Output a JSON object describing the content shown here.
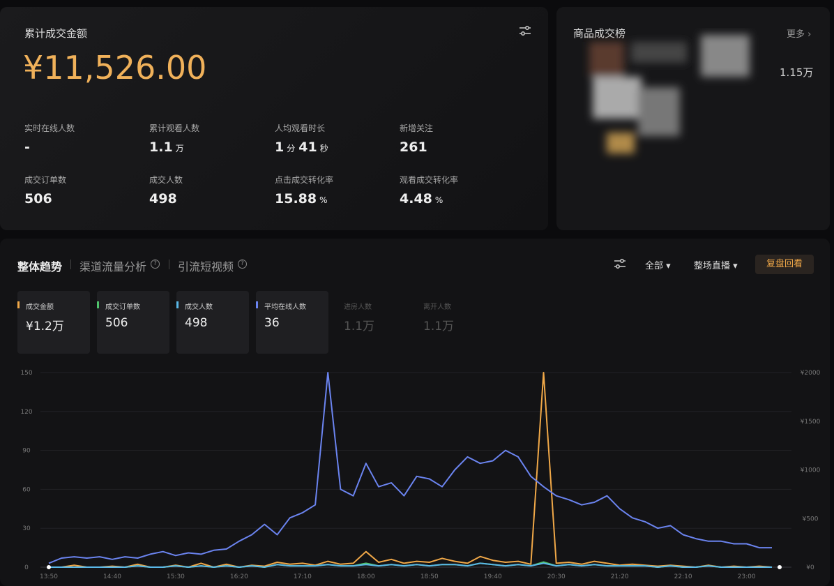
{
  "overview": {
    "title": "累计成交金额",
    "amount": "¥11,526.00",
    "stats": [
      {
        "label": "实时在线人数",
        "parts": [
          {
            "num": "-"
          }
        ]
      },
      {
        "label": "累计观看人数",
        "parts": [
          {
            "num": "1.1",
            "unit": "万"
          }
        ]
      },
      {
        "label": "人均观看时长",
        "parts": [
          {
            "num": "1",
            "unit": "分"
          },
          {
            "num": "41",
            "unit": "秒"
          }
        ]
      },
      {
        "label": "新增关注",
        "parts": [
          {
            "num": "261"
          }
        ]
      },
      {
        "label": "成交订单数",
        "parts": [
          {
            "num": "506"
          }
        ]
      },
      {
        "label": "成交人数",
        "parts": [
          {
            "num": "498"
          }
        ]
      },
      {
        "label": "点击成交转化率",
        "parts": [
          {
            "num": "15.88",
            "unit": "%"
          }
        ]
      },
      {
        "label": "观看成交转化率",
        "parts": [
          {
            "num": "4.48",
            "unit": "%"
          }
        ]
      }
    ]
  },
  "ranking": {
    "title": "商品成交榜",
    "more": "更多",
    "amount": "1.15万"
  },
  "tabs": [
    "整体趋势",
    "渠道流量分析",
    "引流短视频"
  ],
  "controls": {
    "scope": "全部",
    "range": "整场直播",
    "action": "复盘回看"
  },
  "extra_metrics": [
    {
      "name": "进房人数",
      "summary": "1.1万"
    },
    {
      "name": "离开人数",
      "summary": "1.1万"
    }
  ],
  "chart_data": {
    "type": "line",
    "categories": [
      "13:50",
      null,
      null,
      null,
      null,
      "14:40",
      null,
      null,
      null,
      null,
      "15:30",
      null,
      null,
      null,
      null,
      "16:20",
      null,
      null,
      null,
      null,
      "17:10",
      null,
      null,
      null,
      null,
      "18:00",
      null,
      null,
      null,
      null,
      "18:50",
      null,
      null,
      null,
      null,
      "19:40",
      null,
      null,
      null,
      null,
      "20:30",
      null,
      null,
      null,
      null,
      "21:20",
      null,
      null,
      null,
      null,
      "22:10",
      null,
      null,
      null,
      null,
      "23:00",
      null,
      null
    ],
    "ylim": [
      0,
      150
    ],
    "yticks": [
      0,
      30,
      60,
      90,
      120,
      150
    ],
    "y2lim": [
      0,
      2000
    ],
    "y2ticks": [
      {
        "value": 0,
        "label": "¥0"
      },
      {
        "value": 500,
        "label": "¥500"
      },
      {
        "value": 1000,
        "label": "¥1000"
      },
      {
        "value": 1500,
        "label": "¥1500"
      },
      {
        "value": 2000,
        "label": "¥2000"
      }
    ],
    "grid": true,
    "series": [
      {
        "name": "成交金额",
        "summary": "¥1.2万",
        "color": "#f0a848",
        "axis": "y2",
        "values": [
          0,
          0,
          20,
          0,
          0,
          10,
          0,
          30,
          0,
          0,
          20,
          0,
          40,
          0,
          30,
          0,
          20,
          10,
          50,
          30,
          40,
          20,
          60,
          30,
          40,
          160,
          50,
          80,
          40,
          60,
          50,
          90,
          60,
          40,
          110,
          70,
          50,
          60,
          30,
          2000,
          40,
          50,
          30,
          60,
          40,
          20,
          30,
          20,
          10,
          20,
          10,
          0,
          20,
          0,
          10,
          0,
          10,
          0
        ]
      },
      {
        "name": "成交订单数",
        "summary": "506",
        "color": "#4fc36b",
        "values": [
          0,
          0,
          0,
          0,
          0,
          0,
          0,
          1,
          0,
          0,
          1,
          0,
          1,
          0,
          1,
          0,
          1,
          0,
          2,
          1,
          1,
          1,
          2,
          1,
          1,
          3,
          1,
          2,
          1,
          2,
          1,
          2,
          2,
          1,
          3,
          2,
          1,
          2,
          1,
          4,
          1,
          2,
          1,
          2,
          1,
          1,
          1,
          1,
          0,
          1,
          0,
          0,
          1,
          0,
          0,
          0,
          0,
          0
        ]
      },
      {
        "name": "成交人数",
        "summary": "498",
        "color": "#5ab8e8",
        "values": [
          0,
          0,
          0,
          0,
          0,
          0,
          0,
          1,
          0,
          0,
          1,
          0,
          1,
          0,
          1,
          0,
          1,
          0,
          2,
          1,
          1,
          1,
          2,
          1,
          1,
          2,
          1,
          2,
          1,
          2,
          1,
          2,
          2,
          1,
          3,
          2,
          1,
          2,
          1,
          3,
          1,
          2,
          1,
          2,
          1,
          1,
          1,
          1,
          0,
          1,
          0,
          0,
          1,
          0,
          0,
          0,
          0,
          0
        ]
      },
      {
        "name": "平均在线人数",
        "summary": "36",
        "color": "#6b84f0",
        "values": [
          3,
          7,
          8,
          7,
          8,
          6,
          8,
          7,
          10,
          12,
          9,
          11,
          10,
          13,
          14,
          20,
          25,
          33,
          25,
          38,
          42,
          48,
          150,
          60,
          55,
          80,
          62,
          65,
          55,
          70,
          68,
          62,
          75,
          85,
          80,
          82,
          90,
          85,
          70,
          62,
          55,
          52,
          48,
          50,
          55,
          45,
          38,
          35,
          30,
          32,
          25,
          22,
          20,
          20,
          18,
          18,
          15,
          15
        ]
      }
    ]
  }
}
